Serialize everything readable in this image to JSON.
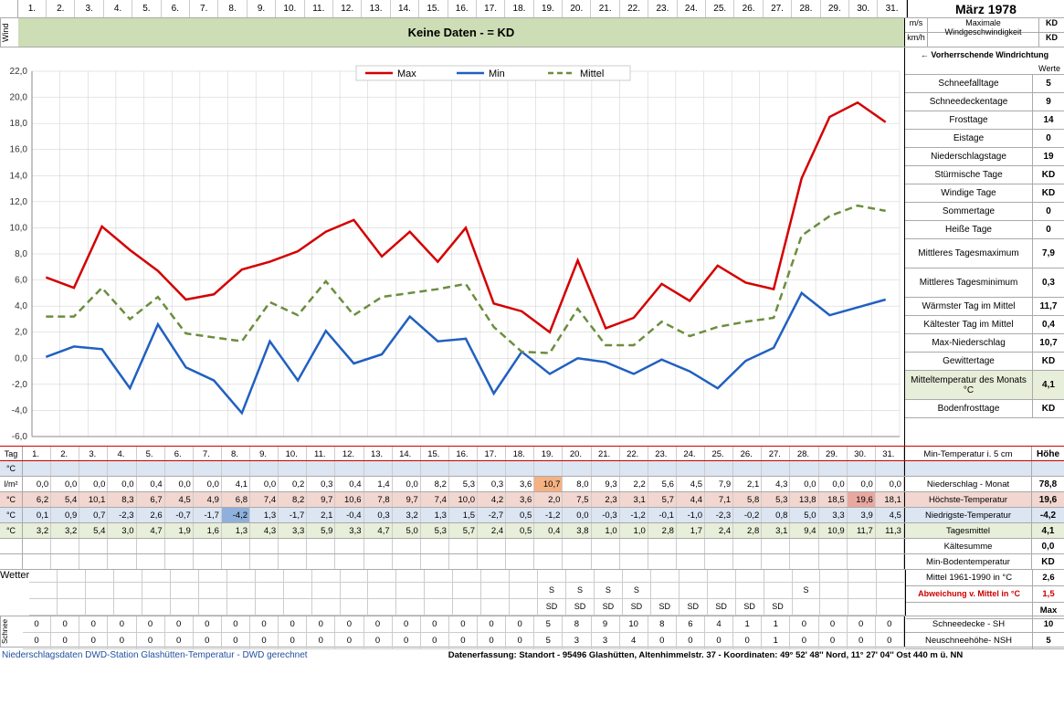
{
  "title": "März 1978",
  "wind": {
    "label": "Wind",
    "banner": "Keine Daten -  = KD",
    "ms_label": "m/s",
    "kmh_label": "km/h",
    "max_label": "Maximale Windgeschwindigkeit",
    "ms_val": "KD",
    "kmh_val": "KD",
    "vwr": "← Vorherrschende Windrichtung"
  },
  "days_header": [
    "1.",
    "2.",
    "3.",
    "4.",
    "5.",
    "6.",
    "7.",
    "8.",
    "9.",
    "10.",
    "11.",
    "12.",
    "13.",
    "14.",
    "15.",
    "16.",
    "17.",
    "18.",
    "19.",
    "20.",
    "21.",
    "22.",
    "23.",
    "24.",
    "25.",
    "26.",
    "27.",
    "28.",
    "29.",
    "30.",
    "31."
  ],
  "chart": {
    "legend": {
      "max": "Max",
      "min": "Min",
      "mittel": "Mittel"
    },
    "colors": {
      "max": "#d40000",
      "min": "#2060c0",
      "mittel": "#6b8e3d",
      "grid": "#cccccc",
      "axis": "#888888",
      "bg": "#ffffff"
    },
    "ylim": [
      -6,
      22
    ],
    "ytick_step": 2,
    "max_series": [
      6.2,
      5.4,
      10.1,
      8.3,
      6.7,
      4.5,
      4.9,
      6.8,
      7.4,
      8.2,
      9.7,
      10.6,
      7.8,
      9.7,
      7.4,
      10.0,
      4.2,
      3.6,
      2.0,
      7.5,
      2.3,
      3.1,
      5.7,
      4.4,
      7.1,
      5.8,
      5.3,
      13.8,
      18.5,
      19.6,
      18.1
    ],
    "min_series": [
      0.1,
      0.9,
      0.7,
      -2.3,
      2.6,
      -0.7,
      -1.7,
      -4.2,
      1.3,
      -1.7,
      2.1,
      -0.4,
      0.3,
      3.2,
      1.3,
      1.5,
      -2.7,
      0.5,
      -1.2,
      0.0,
      -0.3,
      -1.2,
      -0.1,
      -1.0,
      -2.3,
      -0.2,
      0.8,
      5.0,
      3.3,
      3.9,
      4.5
    ],
    "mittel_series": [
      3.2,
      3.2,
      5.4,
      3.0,
      4.7,
      1.9,
      1.6,
      1.3,
      4.3,
      3.3,
      5.9,
      3.3,
      4.7,
      5.0,
      5.3,
      5.7,
      2.4,
      0.5,
      0.4,
      3.8,
      1.0,
      1.0,
      2.8,
      1.7,
      2.4,
      2.8,
      3.1,
      9.4,
      10.9,
      11.7,
      11.3
    ]
  },
  "side_stats": [
    {
      "l": "Schneefalltage",
      "v": "5"
    },
    {
      "l": "Schneedeckentage",
      "v": "9"
    },
    {
      "l": "Frosttage",
      "v": "14"
    },
    {
      "l": "Eistage",
      "v": "0"
    },
    {
      "l": "Niederschlagstage",
      "v": "19"
    },
    {
      "l": "Stürmische Tage",
      "v": "KD"
    },
    {
      "l": "Windige Tage",
      "v": "KD"
    },
    {
      "l": "Sommertage",
      "v": "0"
    },
    {
      "l": "Heiße Tage",
      "v": "0"
    },
    {
      "l": "Mittleres Tagesmaximum",
      "v": "7,9",
      "tall": true
    },
    {
      "l": "Mittleres Tagesminimum",
      "v": "0,3",
      "tall": true
    },
    {
      "l": "Wärmster Tag im Mittel",
      "v": "11,7"
    },
    {
      "l": "Kältester Tag im Mittel",
      "v": "0,4"
    },
    {
      "l": "Max-Niederschlag",
      "v": "10,7"
    },
    {
      "l": "Gewittertage",
      "v": "KD"
    },
    {
      "l": "Mitteltemperatur des Monats °C",
      "v": "4,1",
      "tall": true,
      "mt": true
    },
    {
      "l": "Bodenfrosttage",
      "v": "KD"
    }
  ],
  "werte_label": "Werte",
  "datarows": {
    "tag": {
      "hdl": "Tag",
      "cells": [
        "1.",
        "2.",
        "3.",
        "4.",
        "5.",
        "6.",
        "7.",
        "8.",
        "9.",
        "10.",
        "11.",
        "12.",
        "13.",
        "14.",
        "15.",
        "16.",
        "17.",
        "18.",
        "19.",
        "20.",
        "21.",
        "22.",
        "23.",
        "24.",
        "25.",
        "26.",
        "27.",
        "28.",
        "29.",
        "30.",
        "31."
      ],
      "rlabel": "Min-Temperatur i. 5 cm",
      "rval": "Höhe"
    },
    "degc_blank": {
      "hdl": "°C",
      "cells": [
        "",
        "",
        "",
        "",
        "",
        "",
        "",
        "",
        "",
        "",
        "",
        "",
        "",
        "",
        "",
        "",
        "",
        "",
        "",
        "",
        "",
        "",
        "",
        "",
        "",
        "",
        "",
        "",
        "",
        "",
        ""
      ],
      "rlabel": "",
      "rval": ""
    },
    "nied": {
      "hdl": "l/m²",
      "cells": [
        "0,0",
        "0,0",
        "0,0",
        "0,0",
        "0,4",
        "0,0",
        "0,0",
        "4,1",
        "0,0",
        "0,2",
        "0,3",
        "0,4",
        "1,4",
        "0,0",
        "8,2",
        "5,3",
        "0,3",
        "3,6",
        "10,7",
        "8,0",
        "9,3",
        "2,2",
        "5,6",
        "4,5",
        "7,9",
        "2,1",
        "4,3",
        "0,0",
        "0,0",
        "0,0",
        "0,0"
      ],
      "rlabel": "Niederschlag - Monat",
      "rval": "78,8",
      "hl": {
        "18": "orange"
      }
    },
    "hoechste": {
      "hdl": "°C",
      "cells": [
        "6,2",
        "5,4",
        "10,1",
        "8,3",
        "6,7",
        "4,5",
        "4,9",
        "6,8",
        "7,4",
        "8,2",
        "9,7",
        "10,6",
        "7,8",
        "9,7",
        "7,4",
        "10,0",
        "4,2",
        "3,6",
        "2,0",
        "7,5",
        "2,3",
        "3,1",
        "5,7",
        "4,4",
        "7,1",
        "5,8",
        "5,3",
        "13,8",
        "18,5",
        "19,6",
        "18,1"
      ],
      "rlabel": "Höchste-Temperatur",
      "rval": "19,6",
      "cls": "hoechste",
      "hl": {
        "29": "pink"
      }
    },
    "niedrigste": {
      "hdl": "°C",
      "cells": [
        "0,1",
        "0,9",
        "0,7",
        "-2,3",
        "2,6",
        "-0,7",
        "-1,7",
        "-4,2",
        "1,3",
        "-1,7",
        "2,1",
        "-0,4",
        "0,3",
        "3,2",
        "1,3",
        "1,5",
        "-2,7",
        "0,5",
        "-1,2",
        "0,0",
        "-0,3",
        "-1,2",
        "-0,1",
        "-1,0",
        "-2,3",
        "-0,2",
        "0,8",
        "5,0",
        "3,3",
        "3,9",
        "4,5"
      ],
      "rlabel": "Niedrigste-Temperatur",
      "rval": "-4,2",
      "cls": "niedrigste",
      "hl": {
        "7": "blue"
      }
    },
    "tagesmittel": {
      "hdl": "°C",
      "cells": [
        "3,2",
        "3,2",
        "5,4",
        "3,0",
        "4,7",
        "1,9",
        "1,6",
        "1,3",
        "4,3",
        "3,3",
        "5,9",
        "3,3",
        "4,7",
        "5,0",
        "5,3",
        "5,7",
        "2,4",
        "0,5",
        "0,4",
        "3,8",
        "1,0",
        "1,0",
        "2,8",
        "1,7",
        "2,4",
        "2,8",
        "3,1",
        "9,4",
        "10,9",
        "11,7",
        "11,3"
      ],
      "rlabel": "Tagesmittel",
      "rval": "4,1",
      "cls": "mittel"
    },
    "kaelte": {
      "hdl": "",
      "cells": [
        "",
        "",
        "",
        "",
        "",
        "",
        "",
        "",
        "",
        "",
        "",
        "",
        "",
        "",
        "",
        "",
        "",
        "",
        "",
        "",
        "",
        "",
        "",
        "",
        "",
        "",
        "",
        "",
        "",
        "",
        ""
      ],
      "rlabel": "Kältesumme",
      "rval": "0,0"
    },
    "minboden": {
      "hdl": "",
      "cells": [
        "",
        "",
        "",
        "",
        "",
        "",
        "",
        "",
        "",
        "",
        "",
        "",
        "",
        "",
        "",
        "",
        "",
        "",
        "",
        "",
        "",
        "",
        "",
        "",
        "",
        "",
        "",
        "",
        "",
        "",
        ""
      ],
      "rlabel": "Min-Bodentemperatur",
      "rval": "KD"
    }
  },
  "wetter": {
    "label": "Wetter",
    "s_row": [
      "",
      "",
      "",
      "",
      "",
      "",
      "",
      "",
      "",
      "",
      "",
      "",
      "",
      "",
      "",
      "",
      "",
      "",
      "S",
      "S",
      "S",
      "S",
      "",
      "",
      "",
      "",
      "",
      "S",
      "",
      "",
      ""
    ],
    "sd_row": [
      "",
      "",
      "",
      "",
      "",
      "",
      "",
      "",
      "",
      "",
      "",
      "",
      "",
      "",
      "",
      "",
      "",
      "",
      "SD",
      "SD",
      "SD",
      "SD",
      "SD",
      "SD",
      "SD",
      "SD",
      "SD",
      "",
      "",
      "",
      ""
    ],
    "side": [
      {
        "l": "Mittel 1961-1990 in °C",
        "v": "2,6"
      },
      {
        "l": "Abweichung v. Mittel in °C",
        "v": "1,5",
        "red": true
      },
      {
        "l": "",
        "v": "Max",
        "maxonly": true
      }
    ]
  },
  "schnee": {
    "label": "Schnee",
    "sh": [
      "0",
      "0",
      "0",
      "0",
      "0",
      "0",
      "0",
      "0",
      "0",
      "0",
      "0",
      "0",
      "0",
      "0",
      "0",
      "0",
      "0",
      "0",
      "5",
      "8",
      "9",
      "10",
      "8",
      "6",
      "4",
      "1",
      "1",
      "0",
      "0",
      "0",
      "0"
    ],
    "nsh": [
      "0",
      "0",
      "0",
      "0",
      "0",
      "0",
      "0",
      "0",
      "0",
      "0",
      "0",
      "0",
      "0",
      "0",
      "0",
      "0",
      "0",
      "0",
      "5",
      "3",
      "3",
      "4",
      "0",
      "0",
      "0",
      "0",
      "1",
      "0",
      "0",
      "0",
      "0"
    ],
    "side": [
      {
        "l": "Schneedecke - SH",
        "v": "10"
      },
      {
        "l": "Neuschneehöhe- NSH",
        "v": "5"
      }
    ]
  },
  "footer": {
    "left": "Niederschlagsdaten DWD-Station Glashütten-Temperatur -  DWD gerechnet",
    "right": "Datenerfassung:  Standort -  95496  Glashütten, Altenhimmelstr. 37 - Koordinaten:  49° 52' 48'' Nord,   11° 27' 04'' Ost   440 m ü. NN"
  }
}
